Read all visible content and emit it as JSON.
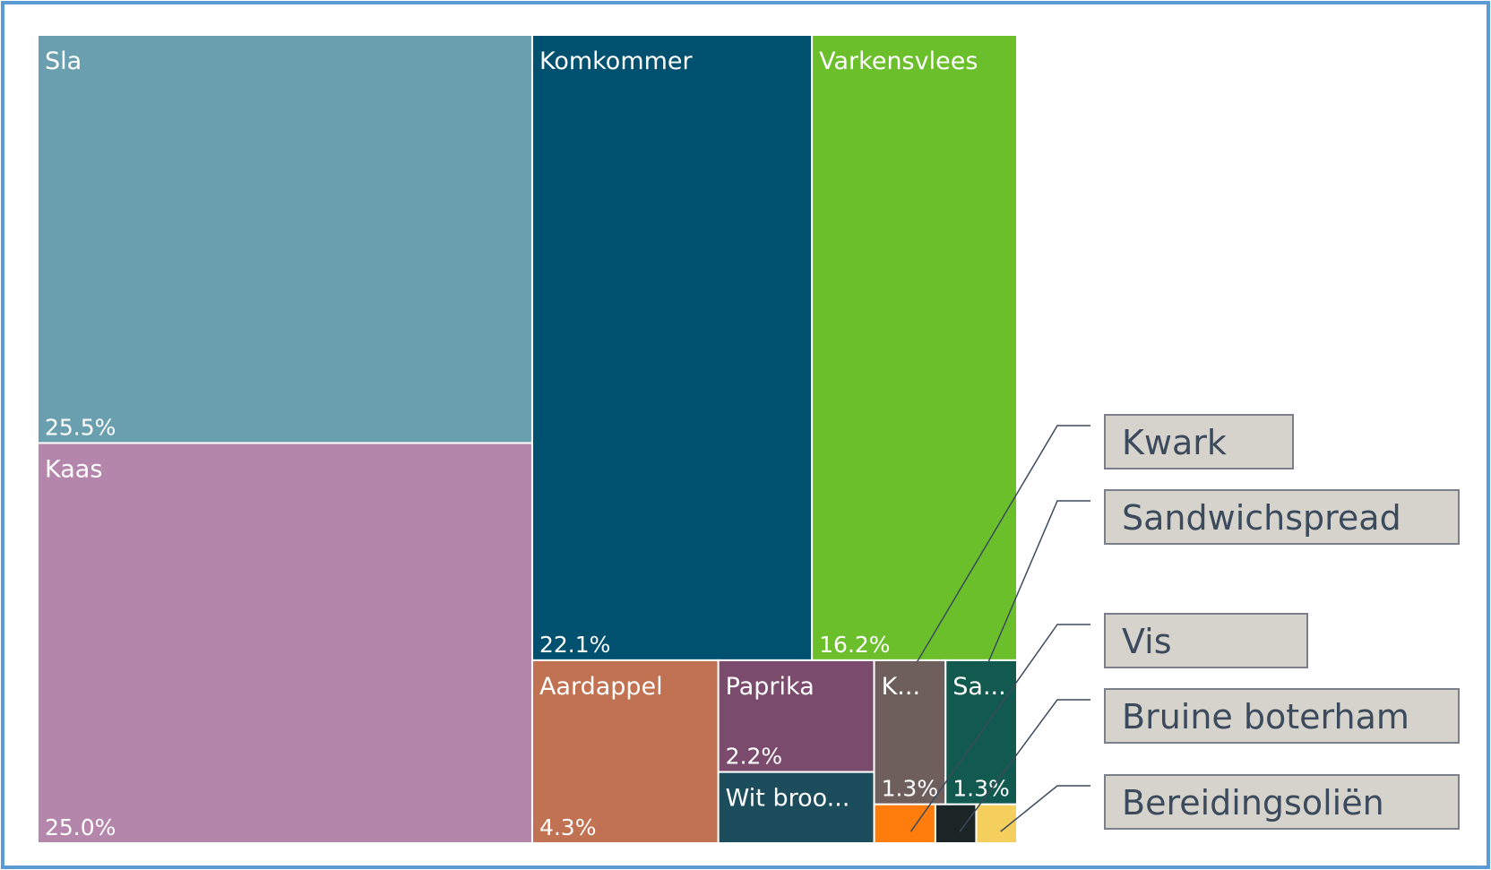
{
  "chart_data": {
    "type": "treemap",
    "categories": [
      "Sla",
      "Kaas",
      "Komkommer",
      "Varkensvlees",
      "Aardappel",
      "Paprika",
      "Wit broo...",
      "Kwark",
      "Sandwichspread",
      "Vis",
      "Bruine boterham",
      "Bereidingsoliën"
    ],
    "labels": [
      "Sla",
      "Kaas",
      "Komkommer",
      "Varkensvlees",
      "Aardappel",
      "Paprika",
      "Wit broo...",
      "K...",
      "Sa...",
      null,
      null,
      null
    ],
    "values": [
      25.5,
      25.0,
      22.1,
      16.2,
      4.3,
      2.2,
      1.4,
      1.3,
      1.3,
      0.3,
      0.2,
      0.2
    ],
    "value_labels": [
      "25.5%",
      "25.0%",
      "22.1%",
      "16.2%",
      "4.3%",
      "2.2%",
      null,
      "1.3%",
      "1.3%",
      null,
      null,
      null
    ],
    "colors": [
      "#6a9fb0",
      "#b586ab",
      "#00506f",
      "#6abf2a",
      "#c07252",
      "#7b4b6e",
      "#1c4d5d",
      "#6e5f5c",
      "#125a4f",
      "#fe7d0c",
      "#1b2526",
      "#f5cf5e"
    ]
  }
}
